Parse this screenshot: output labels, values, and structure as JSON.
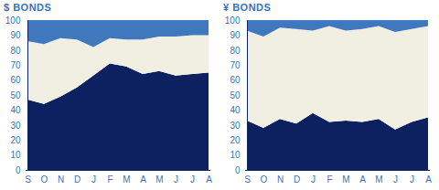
{
  "chart_data": [
    {
      "type": "area",
      "title": "$ BONDS",
      "stacked": true,
      "grid": false,
      "categories": [
        "S",
        "O",
        "N",
        "D",
        "J",
        "F",
        "M",
        "A",
        "M",
        "J",
        "J",
        "A"
      ],
      "ylim": [
        0,
        100
      ],
      "yticks": [
        0,
        10,
        20,
        30,
        40,
        50,
        60,
        70,
        80,
        90,
        100
      ],
      "series": [
        {
          "color": "#0d2060",
          "values": [
            47,
            44,
            49,
            55,
            63,
            71,
            69,
            64,
            66,
            63,
            64,
            65
          ]
        },
        {
          "color": "#f1eee2",
          "values": [
            39,
            40,
            39,
            32,
            19,
            17,
            18,
            23,
            23,
            26,
            26,
            25
          ]
        },
        {
          "color": "#3f78bd",
          "values": [
            14,
            16,
            12,
            13,
            18,
            12,
            13,
            13,
            11,
            11,
            10,
            10
          ]
        }
      ]
    },
    {
      "type": "area",
      "title": "¥ BONDS",
      "stacked": true,
      "grid": false,
      "categories": [
        "S",
        "O",
        "N",
        "D",
        "J",
        "F",
        "M",
        "A",
        "M",
        "J",
        "J",
        "A"
      ],
      "ylim": [
        0,
        100
      ],
      "yticks": [
        0,
        10,
        20,
        30,
        40,
        50,
        60,
        70,
        80,
        90,
        100
      ],
      "series": [
        {
          "color": "#0d2060",
          "values": [
            33,
            28,
            34,
            31,
            38,
            32,
            33,
            32,
            34,
            27,
            32,
            35
          ]
        },
        {
          "color": "#f1eee2",
          "values": [
            60,
            61,
            61,
            63,
            55,
            64,
            60,
            62,
            62,
            65,
            62,
            61
          ]
        },
        {
          "color": "#3f78bd",
          "values": [
            7,
            11,
            5,
            6,
            7,
            4,
            7,
            6,
            4,
            8,
            6,
            4
          ]
        }
      ]
    }
  ]
}
